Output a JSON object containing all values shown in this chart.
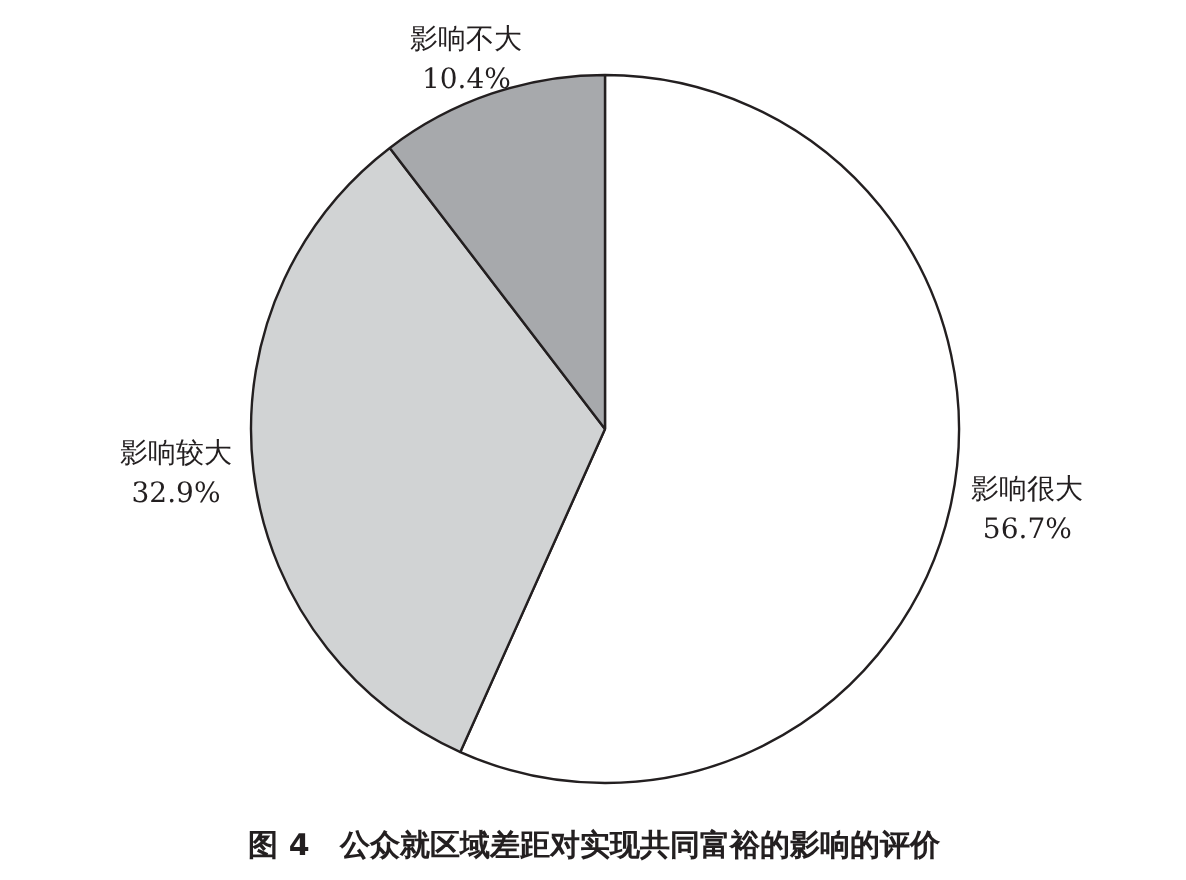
{
  "chart_data": {
    "type": "pie",
    "title": "图 4　公众就区域差距对实现共同富裕的影响的评价",
    "categories": [
      "影响很大",
      "影响较大",
      "影响不大"
    ],
    "values": [
      56.7,
      32.9,
      10.4
    ],
    "value_labels": [
      "56.7%",
      "32.9%",
      "10.4%"
    ],
    "colors": [
      "#ffffff",
      "#d1d3d4",
      "#a7a9ac"
    ]
  }
}
